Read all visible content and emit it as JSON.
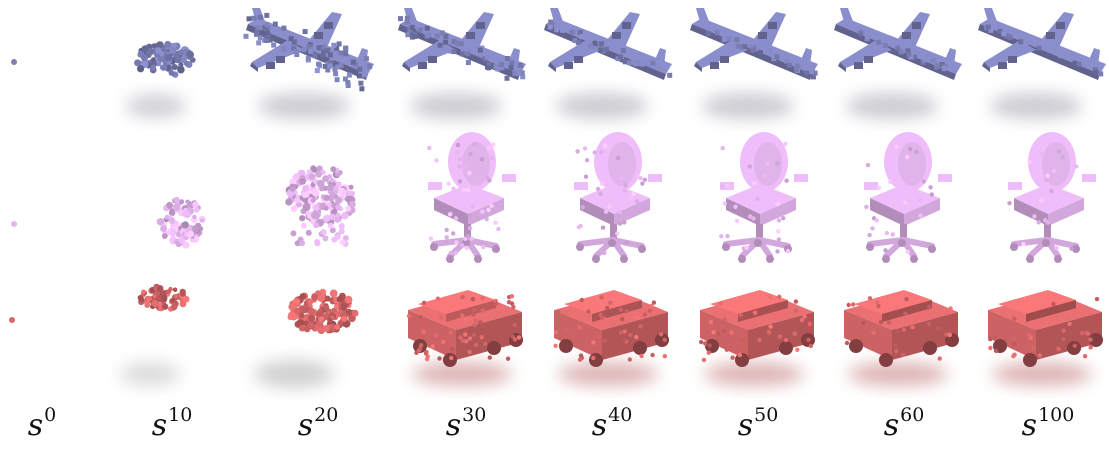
{
  "figure": {
    "rows": [
      {
        "object": "airplane",
        "color": "#7c7fb6",
        "shadow": "#9a9aa6"
      },
      {
        "object": "chair",
        "color": "#e4b5ee",
        "shadow": "#c8b8d4"
      },
      {
        "object": "car",
        "color": "#d9686a",
        "shadow": "#b45a5a"
      }
    ],
    "steps": [
      {
        "base": "s",
        "sup": "0"
      },
      {
        "base": "s",
        "sup": "10"
      },
      {
        "base": "s",
        "sup": "20"
      },
      {
        "base": "s",
        "sup": "30"
      },
      {
        "base": "s",
        "sup": "40"
      },
      {
        "base": "s",
        "sup": "50"
      },
      {
        "base": "s",
        "sup": "60"
      },
      {
        "base": "s",
        "sup": "100"
      }
    ]
  }
}
